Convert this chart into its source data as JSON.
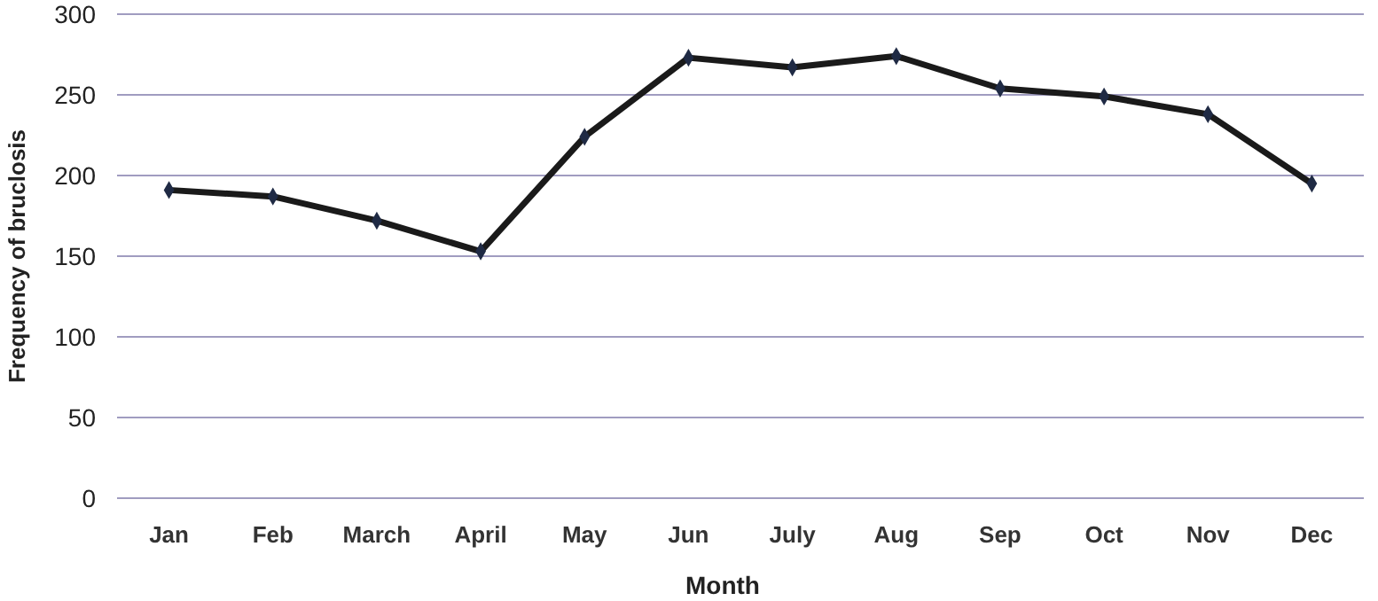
{
  "chart_data": {
    "type": "line",
    "xlabel": "Month",
    "ylabel": "Frequency of bruclosis",
    "categories": [
      "Jan",
      "Feb",
      "March",
      "April",
      "May",
      "Jun",
      "July",
      "Aug",
      "Sep",
      "Oct",
      "Nov",
      "Dec"
    ],
    "series": [
      {
        "color": "#1a1a1a",
        "values": [
          191,
          187,
          172,
          153,
          224,
          273,
          267,
          274,
          254,
          249,
          238,
          195
        ]
      }
    ],
    "ylim": [
      0,
      300
    ],
    "yticks": [
      0,
      50,
      100,
      150,
      200,
      250,
      300
    ],
    "grid": "y",
    "marker": "diamond",
    "line_style": "solid"
  }
}
